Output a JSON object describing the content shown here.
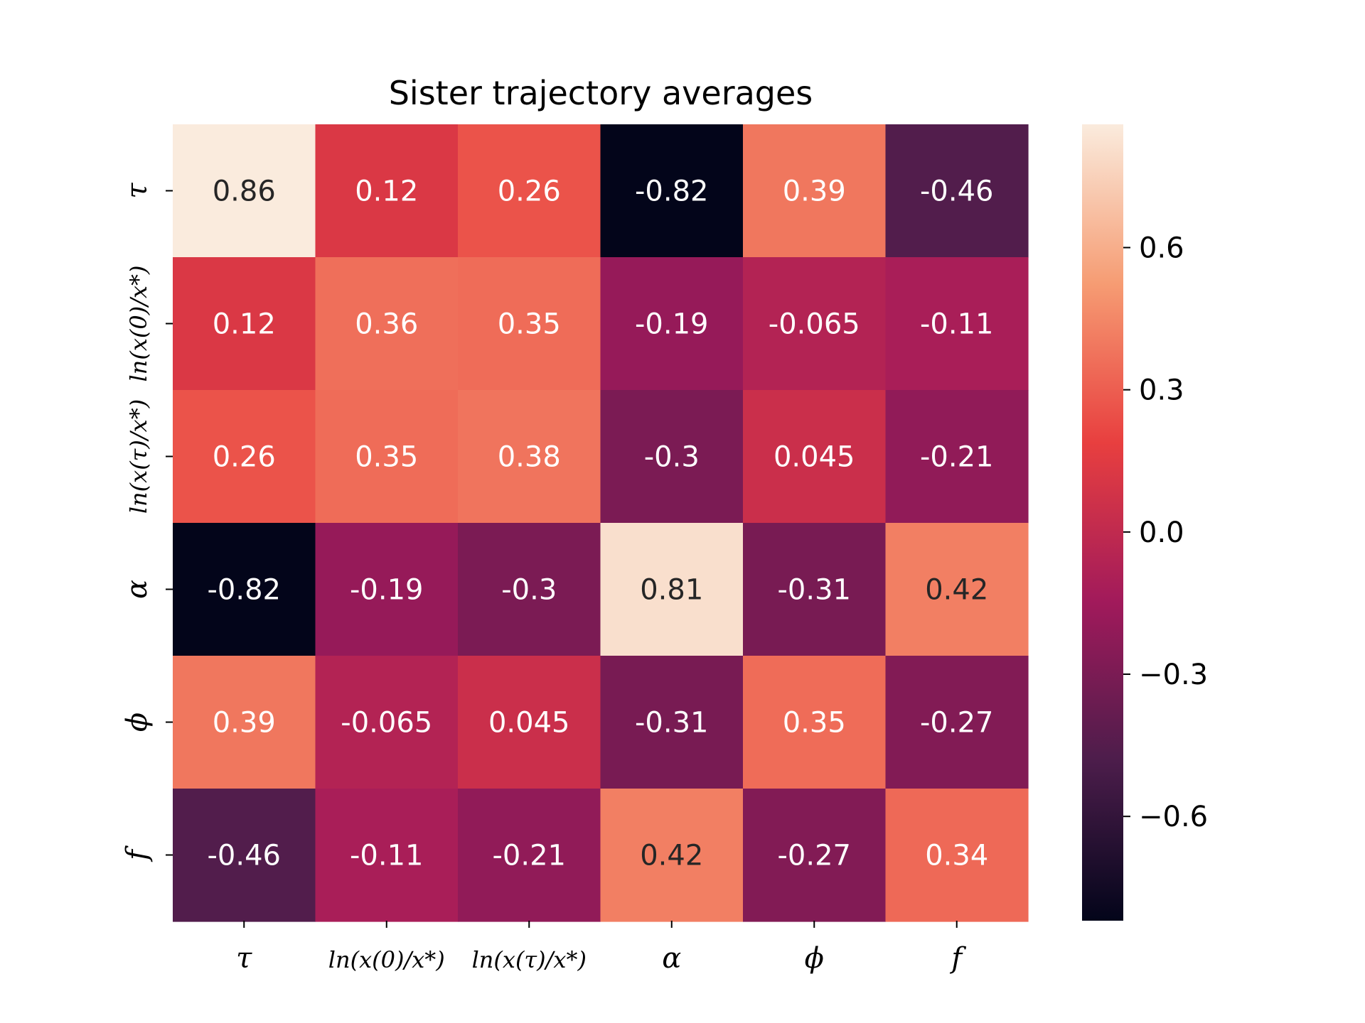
{
  "chart_data": {
    "type": "heatmap",
    "title": "Sister trajectory averages",
    "x_labels": [
      "τ",
      "ln(x(0)/x*)",
      "ln(x(τ)/x*)",
      "α",
      "ϕ",
      "f"
    ],
    "y_labels": [
      "τ",
      "ln(x(0)/x*)",
      "ln(x(τ)/x*)",
      "α",
      "ϕ",
      "f"
    ],
    "values": [
      [
        0.86,
        0.12,
        0.26,
        -0.82,
        0.39,
        -0.46
      ],
      [
        0.12,
        0.36,
        0.35,
        -0.19,
        -0.065,
        -0.11
      ],
      [
        0.26,
        0.35,
        0.38,
        -0.3,
        0.045,
        -0.21
      ],
      [
        -0.82,
        -0.19,
        -0.3,
        0.81,
        -0.31,
        0.42
      ],
      [
        0.39,
        -0.065,
        0.045,
        -0.31,
        0.35,
        -0.27
      ],
      [
        -0.46,
        -0.11,
        -0.21,
        0.42,
        -0.27,
        0.34
      ]
    ],
    "value_labels": [
      [
        "0.86",
        "0.12",
        "0.26",
        "-0.82",
        "0.39",
        "-0.46"
      ],
      [
        "0.12",
        "0.36",
        "0.35",
        "-0.19",
        "-0.065",
        "-0.11"
      ],
      [
        "0.26",
        "0.35",
        "0.38",
        "-0.3",
        "0.045",
        "-0.21"
      ],
      [
        "-0.82",
        "-0.19",
        "-0.3",
        "0.81",
        "-0.31",
        "0.42"
      ],
      [
        "0.39",
        "-0.065",
        "0.045",
        "-0.31",
        "0.35",
        "-0.27"
      ],
      [
        "-0.46",
        "-0.11",
        "-0.21",
        "0.42",
        "-0.27",
        "0.34"
      ]
    ],
    "colorbar": {
      "vmin": -0.82,
      "vmax": 0.86,
      "ticks": [
        0.6,
        0.3,
        0.0,
        -0.3,
        -0.6
      ],
      "tick_labels": [
        "0.6",
        "0.3",
        "0.0",
        "−0.3",
        "−0.6"
      ]
    },
    "colormap": [
      "#03051a",
      "#4c1d4b",
      "#a11a5b",
      "#e83f3f",
      "#f69c73",
      "#faebdd"
    ],
    "annotation_colors": {
      "dark_bg_text": "#ffffff",
      "light_bg_text": "#262626"
    }
  }
}
